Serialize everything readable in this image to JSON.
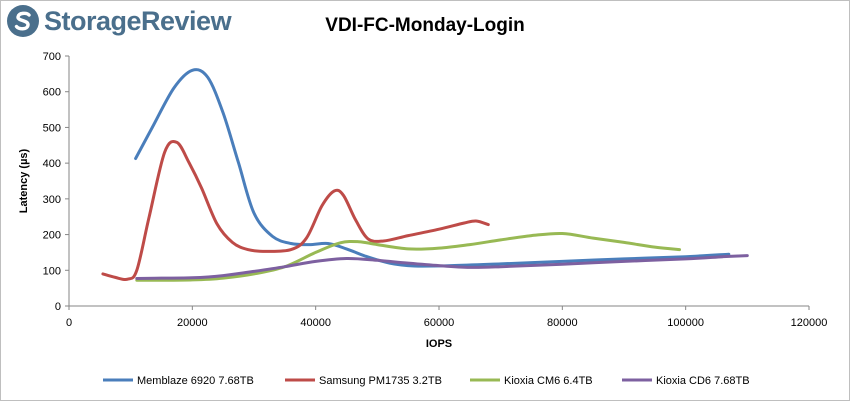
{
  "brand": {
    "name": "StorageReview",
    "color": "#4a6f8c"
  },
  "chart_data": {
    "type": "line",
    "title": "VDI-FC-Monday-Login",
    "xlabel": "IOPS",
    "ylabel": "Latency (µs)",
    "xlim": [
      0,
      120000
    ],
    "ylim": [
      0,
      700
    ],
    "xticks": [
      0,
      20000,
      40000,
      60000,
      80000,
      100000,
      120000
    ],
    "yticks": [
      0,
      100,
      200,
      300,
      400,
      500,
      600,
      700
    ],
    "grid": false,
    "legend_position": "bottom",
    "series": [
      {
        "name": "Memblaze 6920 7.68TB",
        "color": "#4a7ebb",
        "points": [
          [
            10800,
            413
          ],
          [
            13500,
            500
          ],
          [
            17000,
            610
          ],
          [
            20000,
            660
          ],
          [
            22500,
            640
          ],
          [
            25000,
            540
          ],
          [
            27500,
            400
          ],
          [
            30000,
            260
          ],
          [
            33000,
            195
          ],
          [
            36000,
            175
          ],
          [
            39000,
            172
          ],
          [
            42000,
            175
          ],
          [
            45000,
            160
          ],
          [
            48000,
            140
          ],
          [
            52000,
            120
          ],
          [
            56000,
            112
          ],
          [
            62000,
            113
          ],
          [
            70000,
            118
          ],
          [
            80000,
            125
          ],
          [
            90000,
            132
          ],
          [
            100000,
            138
          ],
          [
            107000,
            145
          ]
        ]
      },
      {
        "name": "Samsung PM1735 3.2TB",
        "color": "#be4b48",
        "points": [
          [
            5500,
            90
          ],
          [
            7500,
            80
          ],
          [
            9500,
            75
          ],
          [
            11000,
            100
          ],
          [
            13000,
            250
          ],
          [
            15500,
            430
          ],
          [
            17500,
            458
          ],
          [
            19500,
            400
          ],
          [
            21500,
            330
          ],
          [
            24000,
            230
          ],
          [
            26500,
            178
          ],
          [
            29000,
            158
          ],
          [
            32000,
            153
          ],
          [
            36000,
            158
          ],
          [
            38500,
            190
          ],
          [
            41000,
            280
          ],
          [
            43000,
            322
          ],
          [
            44500,
            310
          ],
          [
            46500,
            240
          ],
          [
            48500,
            188
          ],
          [
            51000,
            182
          ],
          [
            55000,
            197
          ],
          [
            60000,
            215
          ],
          [
            64000,
            232
          ],
          [
            66000,
            238
          ],
          [
            68000,
            228
          ]
        ]
      },
      {
        "name": "Kioxia CM6 6.4TB",
        "color": "#98b954",
        "points": [
          [
            11000,
            72
          ],
          [
            15000,
            72
          ],
          [
            20000,
            73
          ],
          [
            25000,
            78
          ],
          [
            30000,
            90
          ],
          [
            35000,
            110
          ],
          [
            40000,
            150
          ],
          [
            44000,
            177
          ],
          [
            47000,
            180
          ],
          [
            50000,
            172
          ],
          [
            55000,
            160
          ],
          [
            60000,
            162
          ],
          [
            65000,
            172
          ],
          [
            70000,
            185
          ],
          [
            75000,
            197
          ],
          [
            80000,
            203
          ],
          [
            85000,
            190
          ],
          [
            90000,
            178
          ],
          [
            95000,
            165
          ],
          [
            99000,
            158
          ]
        ]
      },
      {
        "name": "Kioxia CD6 7.68TB",
        "color": "#7d60a0",
        "points": [
          [
            11000,
            77
          ],
          [
            15000,
            78
          ],
          [
            20000,
            79
          ],
          [
            25000,
            85
          ],
          [
            30000,
            97
          ],
          [
            35000,
            110
          ],
          [
            40000,
            125
          ],
          [
            45000,
            133
          ],
          [
            50000,
            128
          ],
          [
            55000,
            120
          ],
          [
            60000,
            113
          ],
          [
            65000,
            108
          ],
          [
            70000,
            110
          ],
          [
            80000,
            117
          ],
          [
            90000,
            125
          ],
          [
            100000,
            132
          ],
          [
            106000,
            138
          ],
          [
            110000,
            141
          ]
        ]
      }
    ]
  }
}
